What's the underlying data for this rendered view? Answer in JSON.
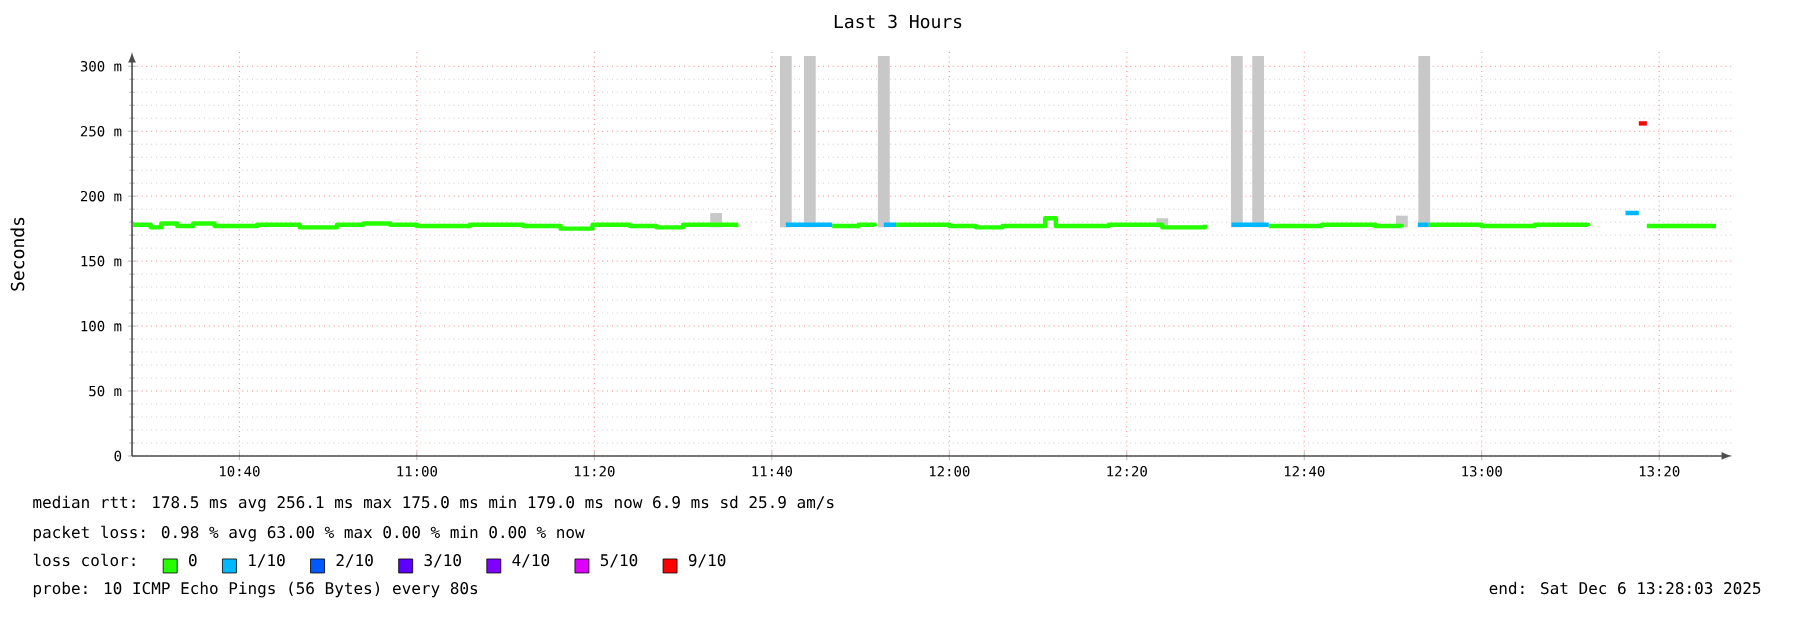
{
  "chart_data": {
    "type": "step",
    "title": "Last 3 Hours",
    "ylabel": "Seconds",
    "xlim": [
      10.465,
      13.47
    ],
    "ylim": [
      0,
      311
    ],
    "xticks": [
      {
        "value": 10.666667,
        "label": "10:40"
      },
      {
        "value": 11,
        "label": "11:00"
      },
      {
        "value": 11.333333,
        "label": "11:20"
      },
      {
        "value": 11.666667,
        "label": "11:40"
      },
      {
        "value": 12,
        "label": "12:00"
      },
      {
        "value": 12.333333,
        "label": "12:20"
      },
      {
        "value": 12.666667,
        "label": "12:40"
      },
      {
        "value": 13,
        "label": "13:00"
      },
      {
        "value": 13.333333,
        "label": "13:20"
      }
    ],
    "yticks": [
      {
        "value": 0,
        "label": "0"
      },
      {
        "value": 50,
        "label": "50 m"
      },
      {
        "value": 100,
        "label": "100 m"
      },
      {
        "value": 150,
        "label": "150 m"
      },
      {
        "value": 200,
        "label": "200 m"
      },
      {
        "value": 250,
        "label": "250 m"
      },
      {
        "value": 300,
        "label": "300 m"
      }
    ],
    "grid": true,
    "legend": "bottom",
    "legend_title": "loss color:",
    "series": [
      {
        "type": "bar",
        "color": "#c8c8c8",
        "x": [
          11.562,
          11.693,
          11.738,
          11.877,
          12.4,
          12.54,
          12.58,
          12.85,
          12.892
        ],
        "base": [
          176,
          176,
          176,
          176,
          176,
          176,
          176,
          176,
          176
        ],
        "values": [
          11,
          132,
          132,
          132,
          7,
          132,
          132,
          9,
          132
        ]
      },
      {
        "name": "0",
        "color": "#26ff00",
        "x": [
          10.467,
          10.5,
          10.52,
          10.55,
          10.58,
          10.62,
          10.7,
          10.78,
          10.85,
          10.9,
          10.95,
          11.0,
          11.1,
          11.2,
          11.27,
          11.33,
          11.4,
          11.45,
          11.5,
          11.6,
          11.693,
          11.78,
          11.83,
          11.86,
          11.877,
          11.9,
          12.0,
          12.05,
          12.1,
          12.16,
          12.18,
          12.2,
          12.3,
          12.4,
          12.48,
          12.53,
          12.6,
          12.7,
          12.8,
          12.85,
          12.88,
          12.9,
          13.0,
          13.1,
          13.2,
          13.28,
          13.31,
          13.44
        ],
        "values": [
          178,
          176,
          179,
          177,
          179,
          177,
          178,
          176,
          178,
          179,
          178,
          177,
          178,
          177,
          175,
          178,
          177,
          176,
          178,
          176,
          null,
          177,
          178,
          177,
          null,
          178,
          177,
          176,
          177,
          177,
          183,
          177,
          178,
          176,
          178,
          null,
          177,
          178,
          177,
          176,
          null,
          178,
          177,
          178,
          177,
          null,
          177,
          177
        ]
      },
      {
        "name": "1/10",
        "color": "#00b8ff",
        "x": [
          11.693,
          11.78,
          11.79,
          11.877,
          11.9,
          11.91,
          12.53,
          12.6,
          12.61,
          12.88,
          12.9,
          12.91,
          13.27,
          13.295
        ],
        "values": [
          178,
          178,
          null,
          178,
          178,
          null,
          178,
          178,
          null,
          178,
          178,
          null,
          187,
          187
        ]
      },
      {
        "name": "2/10",
        "color": "#0059ff"
      },
      {
        "name": "3/10",
        "color": "#5e00ff"
      },
      {
        "name": "4/10",
        "color": "#7e00ff"
      },
      {
        "name": "5/10",
        "color": "#dd00ff"
      },
      {
        "name": "9/10",
        "color": "#ff0000",
        "x": [
          13.295,
          13.31
        ],
        "values": [
          256,
          256
        ]
      }
    ],
    "annotations": [
      "median rtt:  178.5 ms avg  256.1 ms max  175.0 ms min  179.0 ms now  6.9 ms sd  25.9   am/s",
      "packet loss: 0.98 % avg  63.00 % max  0.00 % min  0.00 % now",
      "probe:       10 ICMP Echo Pings (56 Bytes) every 80s",
      "end: Sat Dec  6 13:28:03 2025"
    ]
  }
}
